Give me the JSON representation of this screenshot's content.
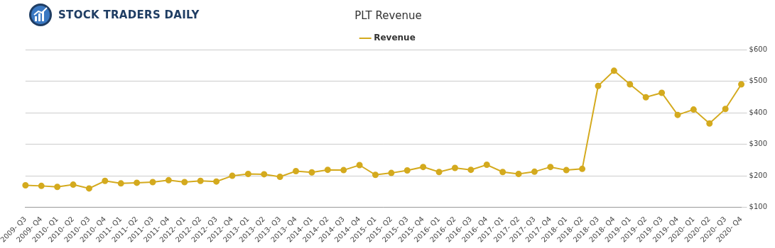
{
  "chart_data": {
    "type": "line",
    "title": "PLT Revenue",
    "annotations": [
      "STOCK TRADERS DAILY"
    ],
    "categories": [
      "2009- Q3",
      "2009- Q4",
      "2010- Q1",
      "2010- Q2",
      "2010- Q3",
      "2010- Q4",
      "2011- Q1",
      "2011- Q2",
      "2011- Q3",
      "2011- Q4",
      "2012- Q1",
      "2012- Q2",
      "2012- Q3",
      "2012- Q4",
      "2013- Q1",
      "2013- Q2",
      "2013- Q3",
      "2013- Q4",
      "2014- Q1",
      "2014- Q2",
      "2014- Q3",
      "2014- Q4",
      "2015- Q1",
      "2015- Q2",
      "2015- Q3",
      "2015- Q4",
      "2016- Q1",
      "2016- Q2",
      "2016- Q3",
      "2016- Q4",
      "2017- Q1",
      "2017- Q2",
      "2017- Q3",
      "2017- Q4",
      "2018- Q1",
      "2018- Q2",
      "2018- Q3",
      "2018- Q4",
      "2019- Q1",
      "2019- Q2",
      "2019- Q3",
      "2019- Q4",
      "2020- Q1",
      "2020- Q2",
      "2020- Q3",
      "2020- Q4"
    ],
    "series": [
      {
        "name": "Revenue",
        "color": "#d4aa1e",
        "marker": "circle",
        "values": [
          170,
          168,
          165,
          172,
          160,
          184,
          176,
          178,
          180,
          186,
          180,
          184,
          182,
          200,
          206,
          205,
          197,
          215,
          211,
          219,
          218,
          234,
          203,
          209,
          217,
          228,
          212,
          225,
          219,
          235,
          212,
          206,
          213,
          228,
          218,
          222,
          485,
          533,
          490,
          449,
          463,
          393,
          410,
          366,
          412,
          490
        ]
      }
    ],
    "ylim": [
      100,
      600
    ],
    "yticks": [
      {
        "value": 100,
        "label": "$100"
      },
      {
        "value": 200,
        "label": "$200"
      },
      {
        "value": 300,
        "label": "$300"
      },
      {
        "value": 400,
        "label": "$400"
      },
      {
        "value": 500,
        "label": "$500"
      },
      {
        "value": 600,
        "label": "$600"
      }
    ],
    "grid": true,
    "legend": "top"
  }
}
